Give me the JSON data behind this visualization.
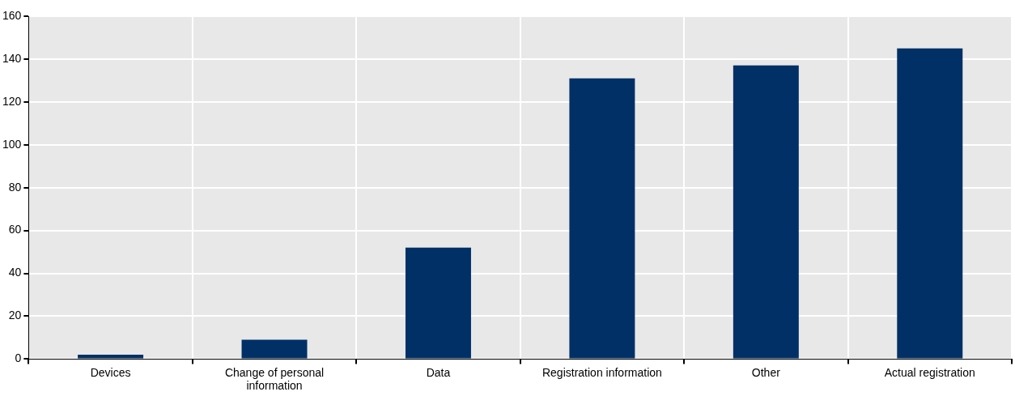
{
  "chart_data": {
    "type": "bar",
    "categories": [
      "Devices",
      "Change of personal information",
      "Data",
      "Registration information",
      "Other",
      "Actual registration"
    ],
    "values": [
      2,
      9,
      52,
      131,
      137,
      145
    ],
    "color": "#003066",
    "ylim": [
      0,
      160
    ],
    "yticks": [
      0,
      20,
      40,
      60,
      80,
      100,
      120,
      140,
      160
    ],
    "grid": true,
    "legend": false
  }
}
